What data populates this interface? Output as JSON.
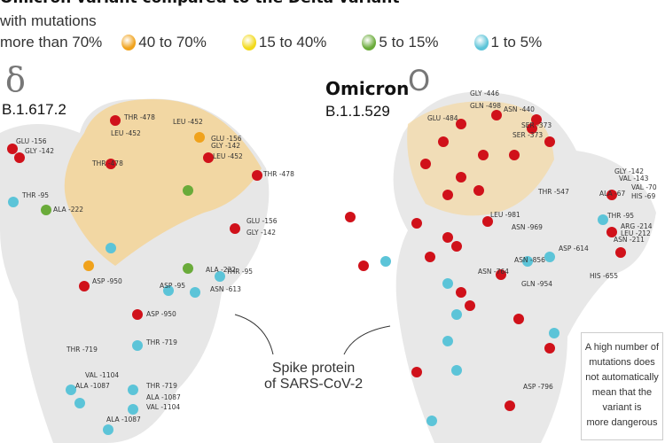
{
  "title": "Omicron variant compared to the Delta variant",
  "subtitle": "with mutations",
  "legend": [
    {
      "label": "more than 70%",
      "color": "#d0111a"
    },
    {
      "label": "40 to 70%",
      "color": "#f0a21c"
    },
    {
      "label": "15 to 40%",
      "color": "#f2d91a"
    },
    {
      "label": "5 to 15%",
      "color": "#6aab3a"
    },
    {
      "label": "1 to 5%",
      "color": "#5cc4d8"
    }
  ],
  "delta": {
    "symbol": "δ",
    "lineage": "B.1.617.2"
  },
  "omicron": {
    "name": "Omicron",
    "symbol": "O",
    "lineage": "B.1.1.529"
  },
  "spike_label": [
    "Spike protein",
    "of SARS-CoV-2"
  ],
  "note": [
    "A high number of",
    "mutations does",
    "not automatically",
    "mean that the",
    "variant is",
    "more dangerous"
  ],
  "delta_residues": [
    "THR -478",
    "LEU -452",
    "LEU -452",
    "GLU -156",
    "GLY -142",
    "GLU -156",
    "GLY -142",
    "THR -478",
    "LEU -452",
    "THR -478",
    "THR -95",
    "ALA -222",
    "GLU -156",
    "GLY -142",
    "ALA -222",
    "THR -95",
    "ASP -950",
    "ASP -95",
    "ASN -613",
    "ASP -950",
    "THR -719",
    "THR -719",
    "VAL -1104",
    "THR -719",
    "ALA -1087",
    "ALA -1087",
    "VAL -1104",
    "ALA -1087"
  ],
  "omicron_residues": [
    "GLY -446",
    "GLN -498",
    "ASN -440",
    "GLU -484",
    "SER -373",
    "SER -373",
    "THR -547",
    "GLY -142",
    "VAL -143",
    "ALA -67",
    "VAL -70",
    "HIS -69",
    "THR -95",
    "ARG -214",
    "LEU -212",
    "ASN -211",
    "LEU -981",
    "ASN -969",
    "ASP -614",
    "ASN -856",
    "ASN -764",
    "GLN -954",
    "HIS -655",
    "ASP -796"
  ]
}
